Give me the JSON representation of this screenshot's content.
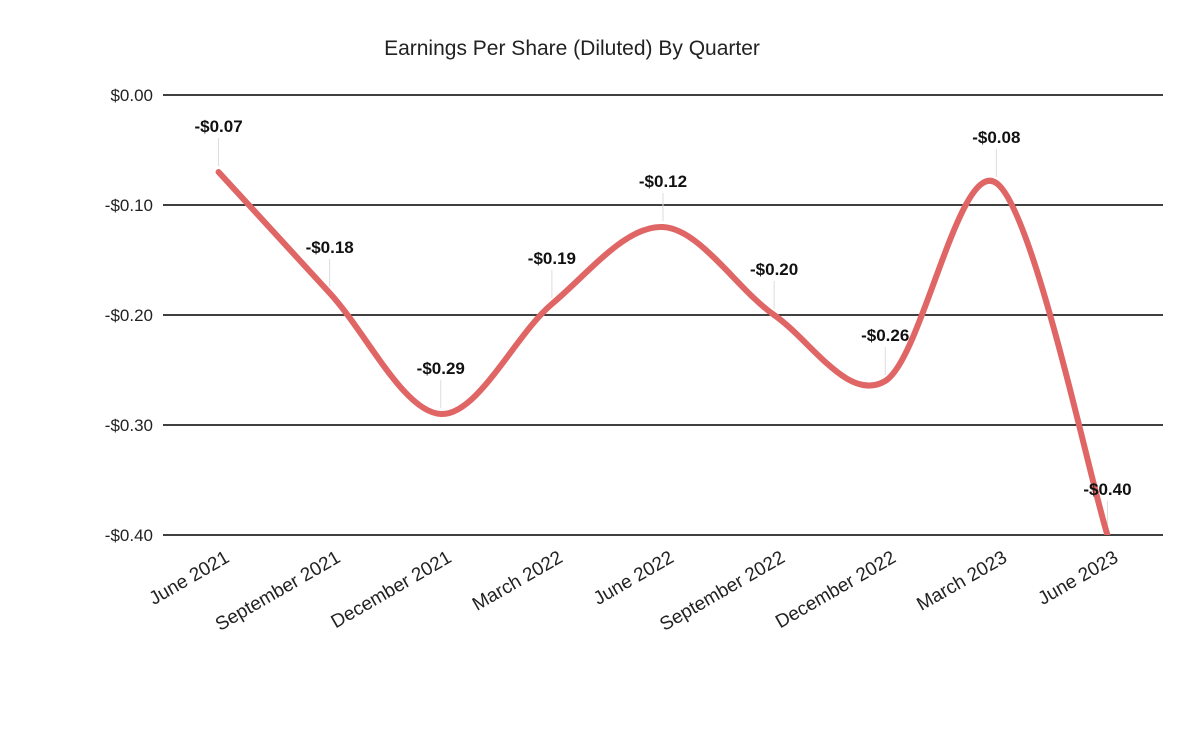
{
  "chart_data": {
    "type": "line",
    "title": "Earnings Per Share (Diluted) By Quarter",
    "xlabel": "",
    "ylabel": "",
    "categories": [
      "June 2021",
      "September 2021",
      "December 2021",
      "March 2022",
      "June 2022",
      "September 2022",
      "December 2022",
      "March 2023",
      "June 2023"
    ],
    "series": [
      {
        "values": [
          -0.07,
          -0.18,
          -0.29,
          -0.19,
          -0.12,
          -0.2,
          -0.26,
          -0.08,
          -0.4
        ],
        "data_labels": [
          "-$0.07",
          "-$0.18",
          "-$0.29",
          "-$0.19",
          "-$0.12",
          "-$0.20",
          "-$0.26",
          "-$0.08",
          "-$0.40"
        ],
        "color": "#e06666",
        "smooth": true
      }
    ],
    "ylim": [
      -0.4,
      0.0
    ],
    "yticks": [
      0.0,
      -0.1,
      -0.2,
      -0.3,
      -0.4
    ],
    "ytick_labels": [
      "$0.00",
      "-$0.10",
      "-$0.20",
      "-$0.30",
      "-$0.40"
    ],
    "grid": true,
    "legend": "none"
  }
}
